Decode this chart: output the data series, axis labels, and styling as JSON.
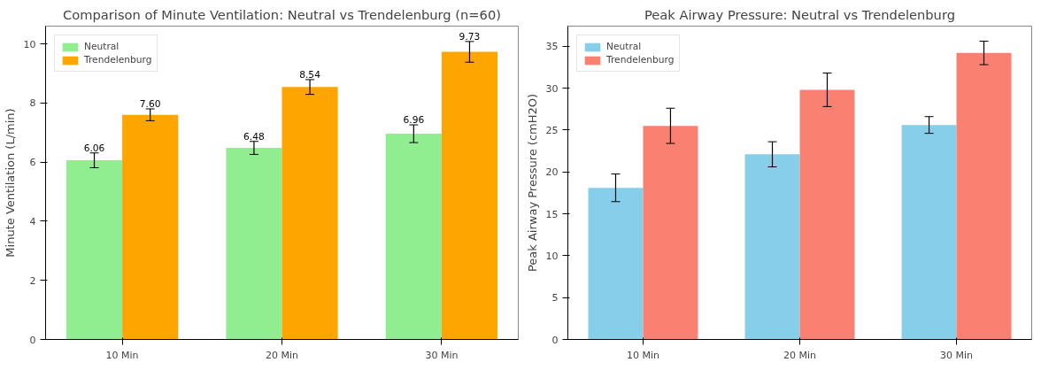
{
  "chart_data": [
    {
      "type": "bar",
      "title": "Comparison of Minute Ventilation: Neutral vs Trendelenburg (n=60)",
      "ylabel": "Minute Ventilation (L/min)",
      "categories": [
        "10 Min",
        "20 Min",
        "30 Min"
      ],
      "series": [
        {
          "name": "Neutral",
          "color": "#90ee90",
          "values": [
            6.06,
            6.48,
            6.96
          ],
          "errors": [
            0.25,
            0.22,
            0.3
          ],
          "value_labels": [
            "6.06",
            "6.48",
            "6.96"
          ]
        },
        {
          "name": "Trendelenburg",
          "color": "#ffa500",
          "values": [
            7.6,
            8.54,
            9.73
          ],
          "errors": [
            0.2,
            0.25,
            0.35
          ],
          "value_labels": [
            "7.60",
            "8.54",
            "9.73"
          ]
        }
      ],
      "ylim": [
        0,
        10.6
      ],
      "yticks": [
        0,
        2,
        4,
        6,
        8,
        10
      ],
      "grid": false,
      "legend": "top left"
    },
    {
      "type": "bar",
      "title": "Peak Airway Pressure: Neutral vs Trendelenburg",
      "ylabel": "Peak Airway Pressure (cmH2O)",
      "categories": [
        "10 Min",
        "20 Min",
        "30 Min"
      ],
      "series": [
        {
          "name": "Neutral",
          "color": "#87ceeb",
          "values": [
            18.1,
            22.1,
            25.6
          ],
          "errors": [
            1.65,
            1.5,
            1.0
          ]
        },
        {
          "name": "Trendelenburg",
          "color": "#fa8072",
          "values": [
            25.5,
            29.8,
            34.2
          ],
          "errors": [
            2.1,
            2.0,
            1.4
          ]
        }
      ],
      "ylim": [
        0,
        37.4
      ],
      "yticks": [
        0,
        5,
        10,
        15,
        20,
        25,
        30,
        35
      ],
      "grid": false,
      "legend": "top left"
    }
  ]
}
